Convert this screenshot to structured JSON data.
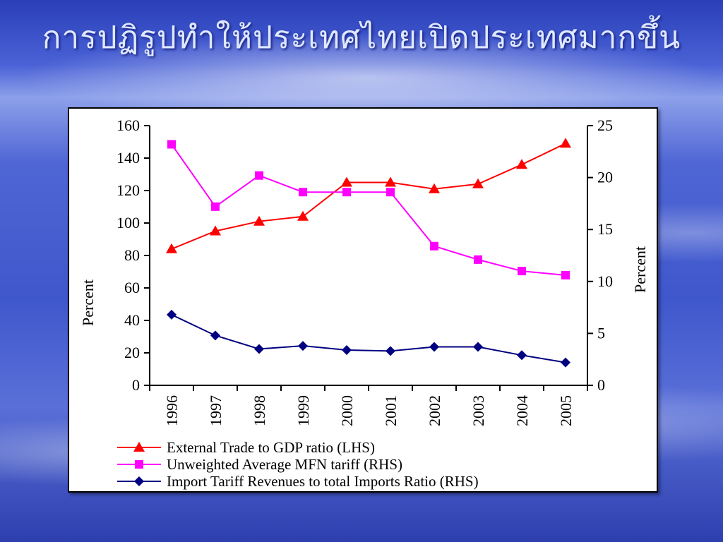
{
  "slide": {
    "title": "การปฏิรูปทำให้ประเทศไทยเปิดประเทศมากขึ้น"
  },
  "chart_data": {
    "type": "line",
    "x": [
      "1996",
      "1997",
      "1998",
      "1999",
      "2000",
      "2001",
      "2002",
      "2003",
      "2004",
      "2005"
    ],
    "ylabel_left": "Percent",
    "ylabel_right": "Percent",
    "ylim_left": [
      0,
      160
    ],
    "ylim_right": [
      0,
      25
    ],
    "yticks_left": [
      0,
      20,
      40,
      60,
      80,
      100,
      120,
      140,
      160
    ],
    "yticks_right": [
      0,
      5,
      10,
      15,
      20,
      25
    ],
    "grid": false,
    "legend_position": "bottom",
    "series": [
      {
        "name": "External Trade to GDP ratio (LHS)",
        "axis": "left",
        "marker": "triangle",
        "color": "#ff0000",
        "values": [
          84,
          95,
          101,
          104,
          125,
          125,
          121,
          124,
          136,
          149
        ]
      },
      {
        "name": "Unweighted Average MFN tariff (RHS)",
        "axis": "right",
        "marker": "square",
        "color": "#ff00ff",
        "values": [
          23.2,
          17.2,
          20.2,
          18.6,
          18.6,
          18.6,
          13.4,
          12.1,
          11.0,
          10.6
        ]
      },
      {
        "name": "Import Tariff Revenues to total Imports Ratio (RHS)",
        "axis": "right",
        "marker": "diamond",
        "color": "#000080",
        "values": [
          6.8,
          4.8,
          3.5,
          3.8,
          3.4,
          3.3,
          3.7,
          3.7,
          2.9,
          2.2
        ]
      }
    ]
  }
}
